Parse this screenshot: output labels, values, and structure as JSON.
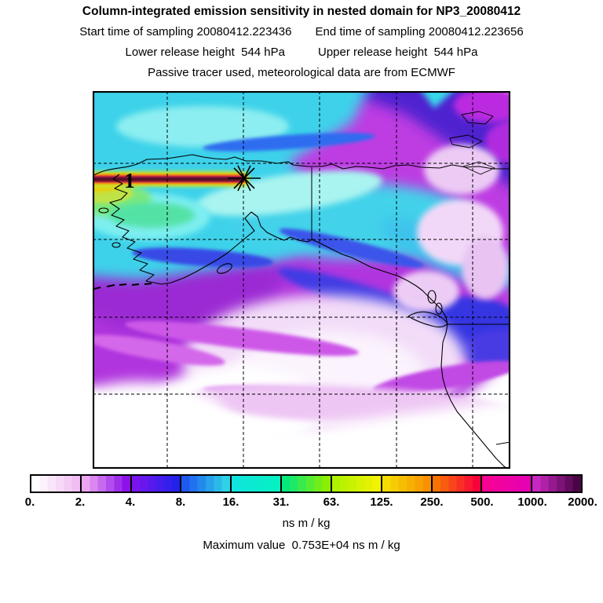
{
  "header": {
    "title": "Column-integrated emission sensitivity in nested domain for NP3_20080412",
    "start_time_text": "Start time of sampling 20080412.223436",
    "end_time_text": "End time of sampling 20080412.223656",
    "lower_release_text": "Lower release height  544 hPa",
    "upper_release_text": "Upper release height  544 hPa",
    "tracer_text": "Passive tracer used, meteorological data are from ECMWF"
  },
  "map": {
    "receptor_label": "1",
    "release_marker_icon": "asterisk-star-icon",
    "graticule_style": "dashed"
  },
  "colorbar": {
    "unit": "ns m / kg",
    "tick_labels": [
      "0.",
      "2.",
      "4.",
      "8.",
      "16.",
      "31.",
      "63.",
      "125.",
      "250.",
      "500.",
      "1000.",
      "2000."
    ],
    "cells": [
      {
        "from": "#ffffff",
        "to": "#f0bef2"
      },
      {
        "from": "#eda4f0",
        "to": "#8d12ea"
      },
      {
        "from": "#7a14ee",
        "to": "#2222ea"
      },
      {
        "from": "#1e59f2",
        "to": "#2ed2e6"
      },
      {
        "from": "#10e4de",
        "to": "#06f0c2"
      },
      {
        "from": "#04e87c",
        "to": "#8cee04"
      },
      {
        "from": "#aef202",
        "to": "#f2f202"
      },
      {
        "from": "#f4dc02",
        "to": "#f89202"
      },
      {
        "from": "#f87202",
        "to": "#f8023c"
      },
      {
        "from": "#f80292",
        "to": "#e402b4"
      },
      {
        "from": "#c928c0",
        "to": "#4a0545"
      }
    ]
  },
  "footer": {
    "max_value_line": "Maximum value  0.753E+04 ns m / kg"
  },
  "chart_data": {
    "type": "heatmap",
    "title": "Column-integrated emission sensitivity in nested domain for NP3_20080412",
    "start_time_of_sampling": "20080412.223436",
    "end_time_of_sampling": "20080412.223656",
    "lower_release_height": "544 hPa",
    "upper_release_height": "544 hPa",
    "tracer_note": "Passive tracer used, meteorological data are from ECMWF",
    "units": "ns m / kg",
    "maximum_value": "0.753E+04 ns m / kg",
    "colorbar_levels": [
      0,
      2,
      4,
      8,
      16,
      31,
      63,
      125,
      250,
      500,
      1000,
      2000
    ],
    "scale": "quasi-logarithmic (value doubles per colorbar cell)",
    "legend_position": "bottom horizontal colorbar",
    "graticule": {
      "vertical_lines": 5,
      "horizontal_lines": 4,
      "style": "dashed"
    },
    "markers": [
      {
        "symbol": "1",
        "meaning": "numbered station marker on plume track"
      },
      {
        "symbol": "asterisk",
        "meaning": "release point at eastern end of plume"
      }
    ],
    "field_summary": [
      {
        "region": "upper-left / central band (North Pacific, Bering Sea)",
        "approx_value": "8-31",
        "color": "cyan-blue"
      },
      {
        "region": "narrow zonal plume across Alaska at release latitude",
        "approx_value": ">2000",
        "color": "yellow-orange-red with dark maroon core"
      },
      {
        "region": "right third (Yukon/BC) and lower-middle",
        "approx_value": "1-4",
        "color": "magenta-purple with pale patches"
      },
      {
        "region": "bottom band, lower-left corner and area south of coast",
        "approx_value": "0",
        "color": "white"
      }
    ]
  }
}
